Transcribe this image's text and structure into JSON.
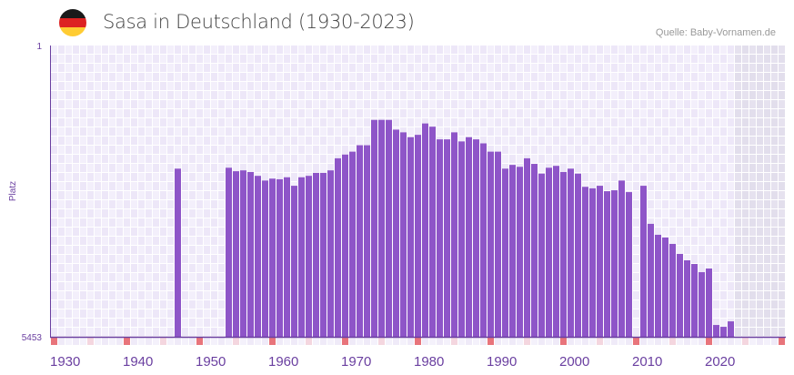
{
  "header": {
    "title": "Sasa in Deutschland (1930-2023)",
    "source": "Quelle: Baby-Vornamen.de",
    "flag_colors": [
      "#1a1a1a",
      "#dd2222",
      "#ffcc33"
    ]
  },
  "colors": {
    "bar": "#8e55c8",
    "axis": "#6a3fa0",
    "decade_marker": "#e8747b",
    "half_marker": "#f4d6df",
    "future_bg": "#e4e0ee"
  },
  "chart_data": {
    "type": "bar",
    "title": "Sasa in Deutschland (1930-2023)",
    "xlabel": "",
    "ylabel": "Platz",
    "y_scale": "log-inverted",
    "ylim": [
      1,
      5453
    ],
    "y_ticks": [
      "1",
      "5453"
    ],
    "xlim": [
      1930,
      2030
    ],
    "x_ticks": [
      "1930",
      "1940",
      "1950",
      "1960",
      "1970",
      "1980",
      "1990",
      "2000",
      "2010",
      "2020"
    ],
    "x": [
      1947,
      1954,
      1955,
      1956,
      1957,
      1958,
      1959,
      1960,
      1961,
      1962,
      1963,
      1964,
      1965,
      1966,
      1967,
      1968,
      1969,
      1970,
      1971,
      1972,
      1973,
      1974,
      1975,
      1976,
      1977,
      1978,
      1979,
      1980,
      1981,
      1982,
      1983,
      1984,
      1985,
      1986,
      1987,
      1988,
      1989,
      1990,
      1991,
      1992,
      1993,
      1994,
      1995,
      1996,
      1997,
      1998,
      1999,
      2000,
      2001,
      2002,
      2003,
      2004,
      2005,
      2006,
      2007,
      2008,
      2009,
      2011,
      2012,
      2013,
      2014,
      2015,
      2016,
      2017,
      2018,
      2019,
      2020,
      2021,
      2022,
      2023
    ],
    "values": [
      38,
      37,
      41,
      40,
      42,
      47,
      54,
      51,
      52,
      49,
      63,
      49,
      47,
      43,
      43,
      40,
      28,
      25,
      23,
      19,
      19,
      9,
      9,
      9,
      12,
      13,
      15,
      14,
      10,
      11,
      16,
      16,
      13,
      17,
      15,
      16,
      18,
      23,
      23,
      38,
      34,
      36,
      28,
      33,
      44,
      37,
      35,
      42,
      38,
      44,
      65,
      68,
      63,
      74,
      72,
      54,
      76,
      63,
      194,
      268,
      291,
      351,
      472,
      570,
      635,
      809,
      726,
      3850,
      4064,
      3459
    ],
    "grid": true,
    "legend": "none"
  }
}
